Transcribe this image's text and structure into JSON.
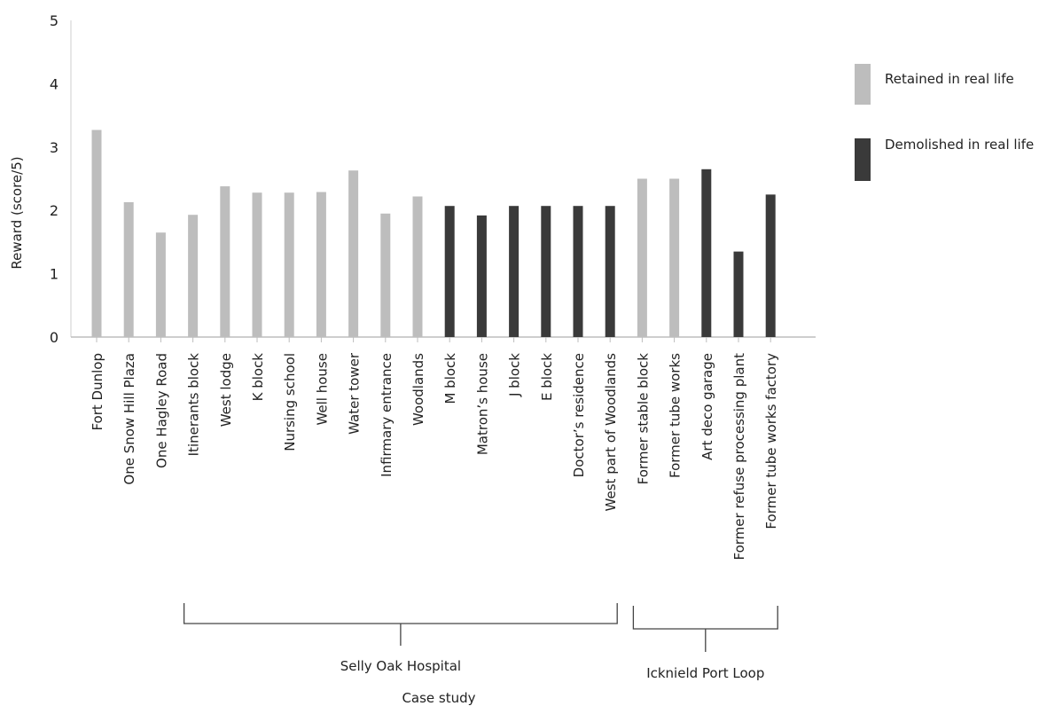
{
  "chart_data": {
    "type": "bar",
    "ylabel": "Reward (score/5)",
    "xlabel": "Case study",
    "ylim": [
      0,
      5
    ],
    "yticks": [
      0,
      1,
      2,
      3,
      4,
      5
    ],
    "grid": false,
    "legend_position": "right",
    "legend": [
      {
        "label": "Retained in real life",
        "color": "#bdbdbd"
      },
      {
        "label": "Demolished in real life",
        "color": "#3a3a3a"
      }
    ],
    "categories": [
      "Fort Dunlop",
      "One Snow Hill Plaza",
      "One Hagley Road",
      "Itinerants block",
      "West lodge",
      "K block",
      "Nursing school",
      "Well house",
      "Water tower",
      "Infirmary entrance",
      "Woodlands",
      "M block",
      "Matron’s house",
      "J block",
      "E block",
      "Doctor’s residence",
      "West part of Woodlands",
      "Former stable block",
      "Former tube works",
      "Art deco garage",
      "Former refuse processing plant",
      "Former tube works factory"
    ],
    "values": [
      3.27,
      2.13,
      1.65,
      1.93,
      2.38,
      2.28,
      2.28,
      2.29,
      2.63,
      1.95,
      2.22,
      2.07,
      1.92,
      2.07,
      2.07,
      2.07,
      2.07,
      2.5,
      2.5,
      2.65,
      1.35,
      2.25
    ],
    "status": [
      "retained",
      "retained",
      "retained",
      "retained",
      "retained",
      "retained",
      "retained",
      "retained",
      "retained",
      "retained",
      "retained",
      "demolished",
      "demolished",
      "demolished",
      "demolished",
      "demolished",
      "demolished",
      "retained",
      "retained",
      "demolished",
      "demolished",
      "demolished"
    ],
    "groups": [
      {
        "label": "Selly Oak Hospital",
        "from": 3,
        "to": 16
      },
      {
        "label": "Icknield Port Loop",
        "from": 17,
        "to": 21
      }
    ]
  }
}
